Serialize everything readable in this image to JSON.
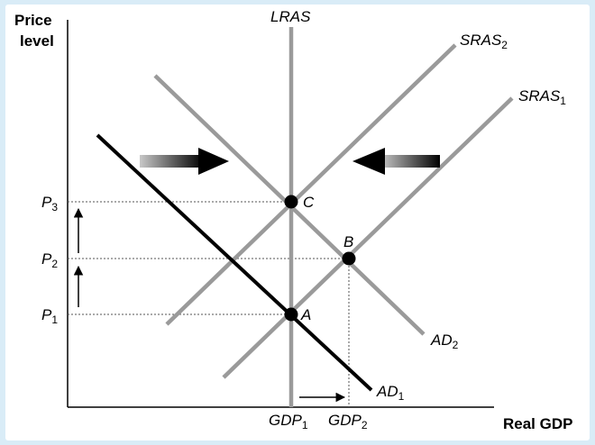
{
  "axes": {
    "y_label_line1": "Price",
    "y_label_line2": "level",
    "x_label": "Real GDP"
  },
  "curves": {
    "lras": "LRAS",
    "sras2_base": "SRAS",
    "sras2_sub": "2",
    "sras1_base": "SRAS",
    "sras1_sub": "1",
    "ad2_base": "AD",
    "ad2_sub": "2",
    "ad1_base": "AD",
    "ad1_sub": "1"
  },
  "points": {
    "a": "A",
    "b": "B",
    "c": "C"
  },
  "price_ticks": [
    {
      "base": "P",
      "sub": "3"
    },
    {
      "base": "P",
      "sub": "2"
    },
    {
      "base": "P",
      "sub": "1"
    }
  ],
  "gdp_ticks": [
    {
      "base": "GDP",
      "sub": "1"
    },
    {
      "base": "GDP",
      "sub": "2"
    }
  ],
  "colors": {
    "background": "#d9ecf7",
    "gray_curve": "#9a9a9a",
    "black_curve": "#000000"
  }
}
